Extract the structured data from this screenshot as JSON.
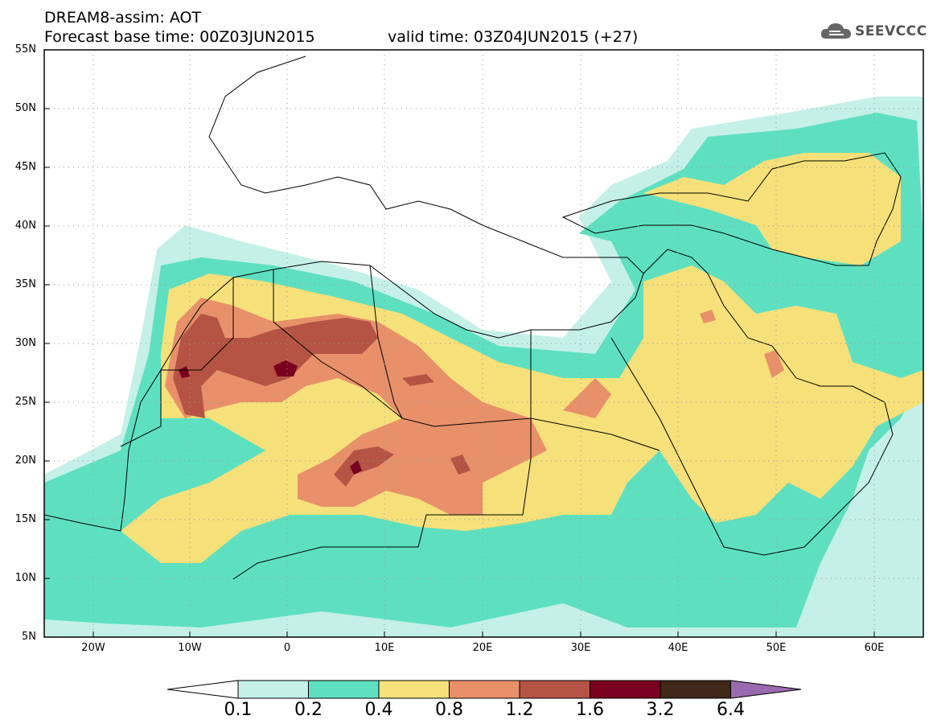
{
  "header": {
    "title": "DREAM8-assim: AOT",
    "forecast": "Forecast base time: 00Z03JUN2015",
    "valid": "valid time: 03Z04JUN2015 (+27)"
  },
  "logo": {
    "text": "SEEVCCC",
    "icon": "cloud-icon"
  },
  "map": {
    "lat_labels": [
      "55N",
      "50N",
      "45N",
      "40N",
      "35N",
      "30N",
      "25N",
      "20N",
      "15N",
      "10N",
      "5N"
    ],
    "lon_labels": [
      "20W",
      "10W",
      "0",
      "10E",
      "20E",
      "30E",
      "40E",
      "50E",
      "60E"
    ]
  },
  "legend": {
    "levels": [
      "0.1",
      "0.2",
      "0.4",
      "0.8",
      "1.2",
      "1.6",
      "3.2",
      "6.4"
    ],
    "colors": [
      "#c4f0e8",
      "#5ee0c0",
      "#f5e07a",
      "#e8906a",
      "#b55444",
      "#7a0020",
      "#3f2818",
      "#9a6ab0"
    ]
  }
}
